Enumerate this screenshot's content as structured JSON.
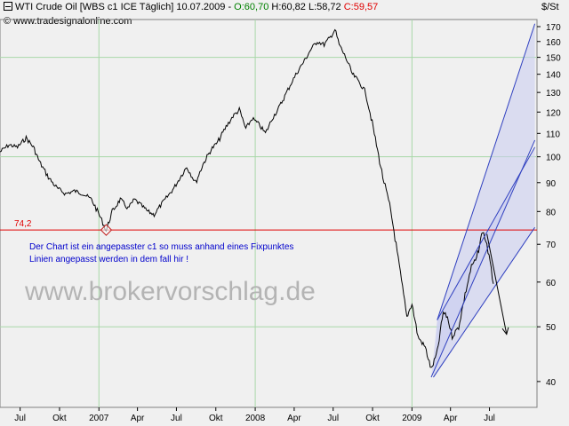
{
  "header": {
    "symbol_prefix": "WTI Crude Oil [WBS c1 ICE  Täglich] 10.07.2009 - ",
    "open_label": "O:60,70",
    "hl_label": " H:60,82 L:58,72 ",
    "close_label": "C:59,57",
    "copyright": "© www.tradesignalonline.com",
    "unit": "$/St"
  },
  "colors": {
    "background": "#f0f0f0",
    "price_line": "#000000",
    "gridline": "#a8d8a8",
    "horizontal_line": "#e00000",
    "channel_stroke": "#3040c0",
    "channel_fill": "#c8ccf0",
    "annotation_text": "#0000cc",
    "watermark": "#b4b4b4"
  },
  "chart_data": {
    "type": "line",
    "y_scale": "log",
    "ylim": [
      36,
      175
    ],
    "xlim": [
      "2006-05-15",
      "2009-10-20"
    ],
    "grid": true,
    "y_ticks": [
      40,
      50,
      60,
      70,
      80,
      90,
      100,
      110,
      120,
      130,
      140,
      150,
      160,
      170
    ],
    "x_ticks": [
      {
        "label": "Jul",
        "date": "2006-07-01"
      },
      {
        "label": "Okt",
        "date": "2006-10-01"
      },
      {
        "label": "2007",
        "date": "2007-01-01"
      },
      {
        "label": "Apr",
        "date": "2007-04-01"
      },
      {
        "label": "Jul",
        "date": "2007-07-01"
      },
      {
        "label": "Okt",
        "date": "2007-10-01"
      },
      {
        "label": "2008",
        "date": "2008-01-01"
      },
      {
        "label": "Apr",
        "date": "2008-04-01"
      },
      {
        "label": "Jul",
        "date": "2008-07-01"
      },
      {
        "label": "Okt",
        "date": "2008-10-01"
      },
      {
        "label": "2009",
        "date": "2009-01-01"
      },
      {
        "label": "Apr",
        "date": "2009-04-01"
      },
      {
        "label": "Jul",
        "date": "2009-07-01"
      }
    ],
    "series": [
      {
        "points": [
          [
            "2006-05-15",
            102
          ],
          [
            "2006-06-05",
            105
          ],
          [
            "2006-06-25",
            104
          ],
          [
            "2006-07-15",
            108
          ],
          [
            "2006-08-01",
            104
          ],
          [
            "2006-08-15",
            98
          ],
          [
            "2006-09-05",
            92
          ],
          [
            "2006-09-25",
            88
          ],
          [
            "2006-10-15",
            86
          ],
          [
            "2006-11-05",
            87
          ],
          [
            "2006-11-25",
            86
          ],
          [
            "2006-12-15",
            84
          ],
          [
            "2007-01-05",
            78
          ],
          [
            "2007-01-18",
            74
          ],
          [
            "2007-02-01",
            80
          ],
          [
            "2007-02-20",
            84
          ],
          [
            "2007-03-10",
            81
          ],
          [
            "2007-03-25",
            84
          ],
          [
            "2007-04-10",
            82
          ],
          [
            "2007-04-25",
            80
          ],
          [
            "2007-05-10",
            79
          ],
          [
            "2007-05-25",
            82
          ],
          [
            "2007-06-10",
            85
          ],
          [
            "2007-06-25",
            88
          ],
          [
            "2007-07-10",
            92
          ],
          [
            "2007-07-25",
            96
          ],
          [
            "2007-08-15",
            90
          ],
          [
            "2007-09-01",
            97
          ],
          [
            "2007-09-20",
            103
          ],
          [
            "2007-10-05",
            106
          ],
          [
            "2007-10-25",
            113
          ],
          [
            "2007-11-10",
            118
          ],
          [
            "2007-11-25",
            121
          ],
          [
            "2007-12-10",
            112
          ],
          [
            "2007-12-25",
            117
          ],
          [
            "2008-01-10",
            114
          ],
          [
            "2008-01-25",
            110
          ],
          [
            "2008-02-10",
            117
          ],
          [
            "2008-02-25",
            122
          ],
          [
            "2008-03-10",
            128
          ],
          [
            "2008-03-25",
            135
          ],
          [
            "2008-04-10",
            142
          ],
          [
            "2008-04-25",
            148
          ],
          [
            "2008-05-10",
            155
          ],
          [
            "2008-05-25",
            160
          ],
          [
            "2008-06-10",
            158
          ],
          [
            "2008-06-25",
            163
          ],
          [
            "2008-07-05",
            168
          ],
          [
            "2008-07-15",
            158
          ],
          [
            "2008-07-30",
            150
          ],
          [
            "2008-08-15",
            140
          ],
          [
            "2008-08-30",
            136
          ],
          [
            "2008-09-15",
            130
          ],
          [
            "2008-09-30",
            115
          ],
          [
            "2008-10-10",
            105
          ],
          [
            "2008-10-25",
            92
          ],
          [
            "2008-11-10",
            82
          ],
          [
            "2008-11-20",
            74
          ],
          [
            "2008-12-05",
            62
          ],
          [
            "2008-12-20",
            52
          ],
          [
            "2009-01-01",
            55
          ],
          [
            "2009-01-15",
            48
          ],
          [
            "2009-02-01",
            46
          ],
          [
            "2009-02-15",
            42
          ],
          [
            "2009-03-01",
            45
          ],
          [
            "2009-03-15",
            53
          ],
          [
            "2009-03-25",
            52
          ],
          [
            "2009-04-05",
            48
          ],
          [
            "2009-04-20",
            50
          ],
          [
            "2009-05-05",
            57
          ],
          [
            "2009-05-20",
            64
          ],
          [
            "2009-06-01",
            66
          ],
          [
            "2009-06-15",
            74
          ],
          [
            "2009-06-25",
            70
          ],
          [
            "2009-07-10",
            59.57
          ]
        ]
      }
    ],
    "horizontal_line": {
      "value": 74.2,
      "label": "74,2"
    },
    "channels": [
      {
        "lower": [
          [
            "2009-02-15",
            40.7
          ],
          [
            "2009-10-15",
            107
          ]
        ],
        "upper": [
          [
            "2009-03-01",
            51.4
          ],
          [
            "2009-10-15",
            172
          ]
        ]
      },
      {
        "lower": [
          [
            "2009-02-20",
            40.7
          ],
          [
            "2009-10-15",
            75
          ]
        ],
        "upper": [
          [
            "2009-03-01",
            51.4
          ],
          [
            "2009-10-15",
            104
          ]
        ]
      }
    ],
    "arrow": {
      "from": [
        "2009-06-25",
        73
      ],
      "to": [
        "2009-08-10",
        48.5
      ]
    },
    "marker": {
      "date": "2007-01-18",
      "value": 74.2
    }
  },
  "annotation": {
    "line1": "Der Chart ist ein angepasster c1 so muss anhand eines Fixpunktes",
    "line2": "Linien angepasst werden in dem fall hir !"
  },
  "watermark": "www.brokervorschlag.de"
}
